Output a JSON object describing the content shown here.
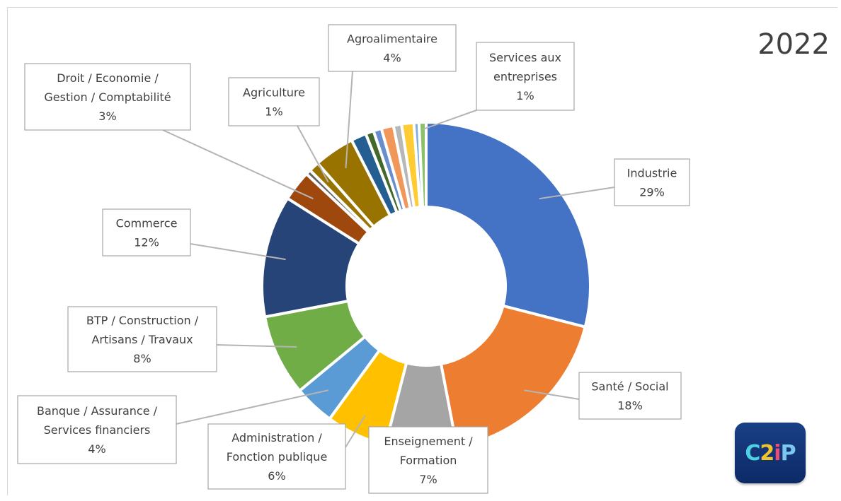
{
  "year_label": "2022",
  "logo": {
    "parts": [
      "C",
      "2",
      "i",
      "P"
    ]
  },
  "chart_data": {
    "type": "donut",
    "title": "",
    "slices": [
      {
        "label": "Industrie",
        "pct": "29%",
        "value": 29,
        "color": "#4472C4"
      },
      {
        "label": "Santé / Social",
        "pct": "18%",
        "value": 18,
        "color": "#ED7D31"
      },
      {
        "label": "Enseignement / Formation",
        "pct": "7%",
        "value": 7,
        "color": "#A5A5A5"
      },
      {
        "label": "Administration / Fonction publique",
        "pct": "6%",
        "value": 6,
        "color": "#FFC000"
      },
      {
        "label": "Banque / Assurance / Services financiers",
        "pct": "4%",
        "value": 4,
        "color": "#5B9BD5"
      },
      {
        "label": "BTP / Construction / Artisans / Travaux",
        "pct": "8%",
        "value": 8,
        "color": "#70AD47"
      },
      {
        "label": "Commerce",
        "pct": "12%",
        "value": 12,
        "color": "#264478"
      },
      {
        "label": "Droit / Economie / Gestion / Comptabilité",
        "pct": "3%",
        "value": 3,
        "color": "#9E480E"
      },
      {
        "label": "",
        "pct": "",
        "value": 0.5,
        "color": "#636363"
      },
      {
        "label": "Agriculture",
        "pct": "1%",
        "value": 1,
        "color": "#997300"
      },
      {
        "label": "Agroalimentaire",
        "pct": "4%",
        "value": 4,
        "color": "#997300"
      },
      {
        "label": "",
        "pct": "",
        "value": 1.5,
        "color": "#255E91"
      },
      {
        "label": "",
        "pct": "",
        "value": 0.8,
        "color": "#43682B"
      },
      {
        "label": "",
        "pct": "",
        "value": 0.8,
        "color": "#698ED0"
      },
      {
        "label": "",
        "pct": "",
        "value": 1.2,
        "color": "#F1975A"
      },
      {
        "label": "",
        "pct": "",
        "value": 0.8,
        "color": "#B7B7B7"
      },
      {
        "label": "",
        "pct": "",
        "value": 1.2,
        "color": "#FFCD33"
      },
      {
        "label": "",
        "pct": "",
        "value": 0.5,
        "color": "#7CAFDD"
      },
      {
        "label": "Services aux entreprises",
        "pct": "1%",
        "value": 0.7,
        "color": "#8CC168"
      }
    ]
  },
  "callouts": [
    {
      "lines": [
        "Industrie"
      ],
      "pct": "29%"
    },
    {
      "lines": [
        "Santé / Social"
      ],
      "pct": "18%"
    },
    {
      "lines": [
        "Enseignement /",
        "Formation"
      ],
      "pct": "7%"
    },
    {
      "lines": [
        "Administration /",
        "Fonction publique"
      ],
      "pct": "6%"
    },
    {
      "lines": [
        "Banque / Assurance /",
        "Services financiers"
      ],
      "pct": "4%"
    },
    {
      "lines": [
        "BTP / Construction /",
        "Artisans / Travaux"
      ],
      "pct": "8%"
    },
    {
      "lines": [
        "Commerce"
      ],
      "pct": "12%"
    },
    {
      "lines": [
        "Droit / Economie /",
        "Gestion / Comptabilité"
      ],
      "pct": "3%"
    },
    {
      "lines": [
        "Agriculture"
      ],
      "pct": "1%"
    },
    {
      "lines": [
        "Agroalimentaire"
      ],
      "pct": "4%"
    },
    {
      "lines": [
        "Services aux",
        "entreprises"
      ],
      "pct": "1%"
    }
  ]
}
